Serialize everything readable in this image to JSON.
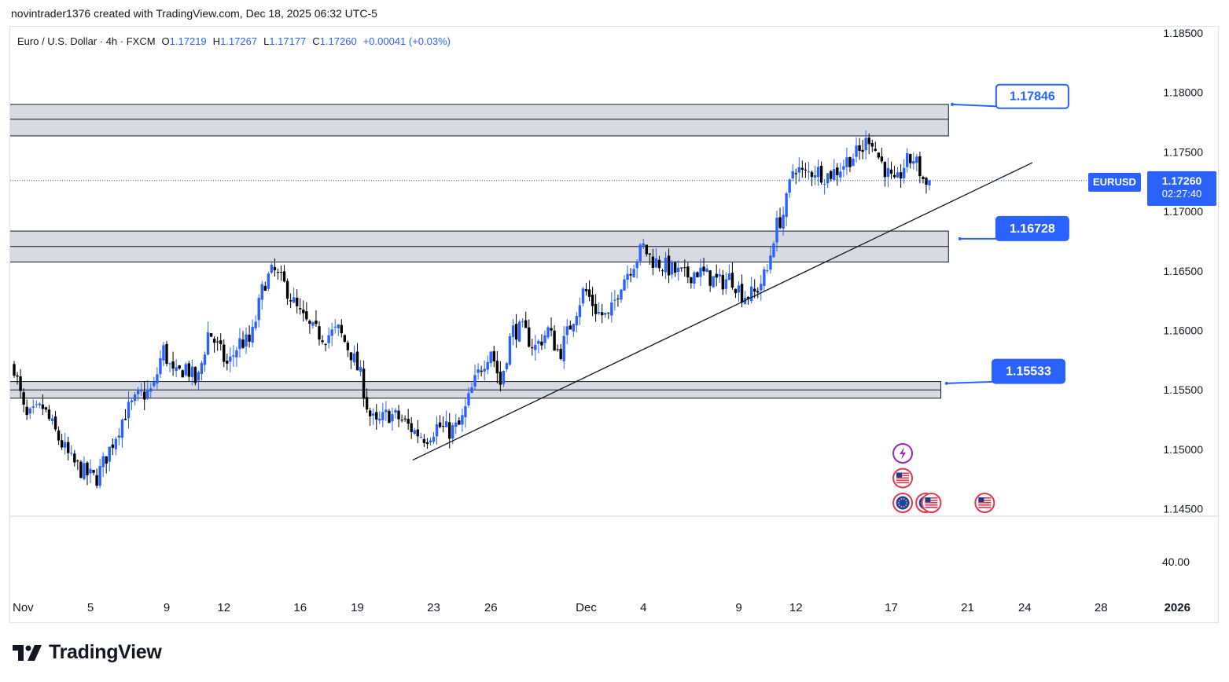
{
  "caption": "novintrader1376 created with TradingView.com, Dec 18, 2025 06:32 UTC-5",
  "legend": {
    "title": "Euro / U.S. Dollar · 4h · FXCM",
    "o_label": "O",
    "o": "1.17219",
    "h_label": "H",
    "h": "1.17267",
    "l_label": "L",
    "l": "1.17177",
    "c_label": "C",
    "c": "1.17260",
    "change": "+0.00041 (+0.03%)"
  },
  "symbol": "EURUSD",
  "current_price": "1.17260",
  "countdown": "02:27:40",
  "brand": "TradingView",
  "colors": {
    "up": "#2962ff",
    "down": "#000000",
    "accent": "#2962ff",
    "zone": "#d1d4dc",
    "event_red": "#e5354b",
    "event_purple": "#9c27b0"
  },
  "chart_data": {
    "type": "candlestick",
    "symbol": "EURUSD",
    "timeframe": "4h",
    "y_axis": {
      "min": 1.145,
      "max": 1.185,
      "step": 0.005,
      "ticks": [
        "1.18500",
        "1.18000",
        "1.17500",
        "1.17000",
        "1.16500",
        "1.16000",
        "1.15500",
        "1.15000",
        "1.14500"
      ]
    },
    "indicator_tick": "40.00",
    "x_axis": {
      "ticks": [
        {
          "label": "Nov",
          "day": 0,
          "bold": false
        },
        {
          "label": "5",
          "day": 4,
          "bold": false
        },
        {
          "label": "9",
          "day": 8,
          "bold": false
        },
        {
          "label": "12",
          "day": 11,
          "bold": false
        },
        {
          "label": "16",
          "day": 15,
          "bold": false
        },
        {
          "label": "19",
          "day": 18,
          "bold": false
        },
        {
          "label": "23",
          "day": 22,
          "bold": false
        },
        {
          "label": "26",
          "day": 25,
          "bold": false
        },
        {
          "label": "Dec",
          "day": 30,
          "bold": false
        },
        {
          "label": "4",
          "day": 33,
          "bold": false
        },
        {
          "label": "9",
          "day": 38,
          "bold": false
        },
        {
          "label": "12",
          "day": 41,
          "bold": false
        },
        {
          "label": "17",
          "day": 46,
          "bold": false
        },
        {
          "label": "21",
          "day": 50,
          "bold": false
        },
        {
          "label": "24",
          "day": 53,
          "bold": false
        },
        {
          "label": "28",
          "day": 57,
          "bold": false
        },
        {
          "label": "2026",
          "day": 61,
          "bold": true
        }
      ]
    },
    "path": [
      {
        "day": 0.0,
        "price": 1.157
      },
      {
        "day": 0.6,
        "price": 1.1525
      },
      {
        "day": 1.5,
        "price": 1.1535
      },
      {
        "day": 2.3,
        "price": 1.151
      },
      {
        "day": 3.0,
        "price": 1.149
      },
      {
        "day": 3.7,
        "price": 1.148
      },
      {
        "day": 4.3,
        "price": 1.1475
      },
      {
        "day": 5.0,
        "price": 1.15
      },
      {
        "day": 5.8,
        "price": 1.153
      },
      {
        "day": 6.6,
        "price": 1.1545
      },
      {
        "day": 7.3,
        "price": 1.155
      },
      {
        "day": 7.8,
        "price": 1.1585
      },
      {
        "day": 8.4,
        "price": 1.156
      },
      {
        "day": 9.0,
        "price": 1.157
      },
      {
        "day": 9.6,
        "price": 1.1555
      },
      {
        "day": 10.2,
        "price": 1.16
      },
      {
        "day": 10.7,
        "price": 1.1585
      },
      {
        "day": 11.2,
        "price": 1.157
      },
      {
        "day": 11.8,
        "price": 1.159
      },
      {
        "day": 12.4,
        "price": 1.159
      },
      {
        "day": 13.1,
        "price": 1.164
      },
      {
        "day": 13.6,
        "price": 1.165
      },
      {
        "day": 14.3,
        "price": 1.1635
      },
      {
        "day": 14.9,
        "price": 1.1615
      },
      {
        "day": 15.6,
        "price": 1.16
      },
      {
        "day": 16.3,
        "price": 1.1595
      },
      {
        "day": 17.0,
        "price": 1.16
      },
      {
        "day": 17.7,
        "price": 1.158
      },
      {
        "day": 18.2,
        "price": 1.156
      },
      {
        "day": 18.6,
        "price": 1.153
      },
      {
        "day": 19.0,
        "price": 1.152
      },
      {
        "day": 19.6,
        "price": 1.153
      },
      {
        "day": 20.3,
        "price": 1.1525
      },
      {
        "day": 21.0,
        "price": 1.1515
      },
      {
        "day": 21.6,
        "price": 1.151
      },
      {
        "day": 22.2,
        "price": 1.152
      },
      {
        "day": 22.8,
        "price": 1.1515
      },
      {
        "day": 23.4,
        "price": 1.152
      },
      {
        "day": 24.0,
        "price": 1.155
      },
      {
        "day": 24.5,
        "price": 1.157
      },
      {
        "day": 25.0,
        "price": 1.1585
      },
      {
        "day": 25.5,
        "price": 1.1555
      },
      {
        "day": 26.1,
        "price": 1.16
      },
      {
        "day": 26.7,
        "price": 1.16
      },
      {
        "day": 27.3,
        "price": 1.1585
      },
      {
        "day": 28.0,
        "price": 1.16
      },
      {
        "day": 28.6,
        "price": 1.158
      },
      {
        "day": 29.3,
        "price": 1.161
      },
      {
        "day": 29.9,
        "price": 1.1635
      },
      {
        "day": 30.6,
        "price": 1.1615
      },
      {
        "day": 31.2,
        "price": 1.161
      },
      {
        "day": 31.8,
        "price": 1.164
      },
      {
        "day": 32.4,
        "price": 1.1655
      },
      {
        "day": 33.0,
        "price": 1.167
      },
      {
        "day": 33.4,
        "price": 1.166
      },
      {
        "day": 34.0,
        "price": 1.1655
      },
      {
        "day": 34.6,
        "price": 1.165
      },
      {
        "day": 35.2,
        "price": 1.1645
      },
      {
        "day": 35.8,
        "price": 1.165
      },
      {
        "day": 36.4,
        "price": 1.1645
      },
      {
        "day": 37.0,
        "price": 1.164
      },
      {
        "day": 37.6,
        "price": 1.1645
      },
      {
        "day": 38.2,
        "price": 1.163
      },
      {
        "day": 38.8,
        "price": 1.163
      },
      {
        "day": 39.5,
        "price": 1.165
      },
      {
        "day": 39.9,
        "price": 1.1685
      },
      {
        "day": 40.4,
        "price": 1.17
      },
      {
        "day": 40.9,
        "price": 1.174
      },
      {
        "day": 41.4,
        "price": 1.173
      },
      {
        "day": 42.0,
        "price": 1.1735
      },
      {
        "day": 42.6,
        "price": 1.173
      },
      {
        "day": 43.2,
        "price": 1.1735
      },
      {
        "day": 43.8,
        "price": 1.1745
      },
      {
        "day": 44.4,
        "price": 1.175
      },
      {
        "day": 44.9,
        "price": 1.1765
      },
      {
        "day": 45.2,
        "price": 1.175
      },
      {
        "day": 45.7,
        "price": 1.1735
      },
      {
        "day": 46.2,
        "price": 1.172
      },
      {
        "day": 46.7,
        "price": 1.174
      },
      {
        "day": 47.2,
        "price": 1.1745
      },
      {
        "day": 47.8,
        "price": 1.1722
      },
      {
        "day": 48.1,
        "price": 1.1726
      }
    ],
    "zones": [
      {
        "name": "zone-top",
        "from_day": -0.4,
        "to_day": 49.0,
        "top": 1.179,
        "bottom": 1.17635,
        "mid": 1.17775
      },
      {
        "name": "zone-mid",
        "from_day": -0.4,
        "to_day": 49.0,
        "top": 1.16835,
        "bottom": 1.16575,
        "mid": 1.16705
      },
      {
        "name": "zone-low",
        "from_day": -0.4,
        "to_day": 48.6,
        "top": 1.1557,
        "bottom": 1.1543,
        "mid": 1.155
      }
    ],
    "trendline": {
      "from_day": 20.9,
      "from_price": 1.1491,
      "to_day": 53.4,
      "to_price": 1.1741
    },
    "callouts": [
      {
        "label": "1.17846",
        "value": 1.17846,
        "anchor_day": 49.2,
        "anchor_price": 1.179,
        "box_day": 51.5,
        "box_price": 1.18066,
        "style": "outline"
      },
      {
        "label": "1.16728",
        "value": 1.16728,
        "anchor_day": 49.6,
        "anchor_price": 1.1677,
        "box_day": 51.5,
        "box_price": 1.16955,
        "style": "filled"
      },
      {
        "label": "1.15533",
        "value": 1.15533,
        "anchor_day": 48.9,
        "anchor_price": 1.15555,
        "box_day": 51.3,
        "box_price": 1.15755,
        "style": "filled"
      }
    ],
    "events": [
      {
        "type": "flash",
        "day": 46.6,
        "row": 0
      },
      {
        "type": "us",
        "day": 46.6,
        "row": 1
      },
      {
        "type": "eu",
        "day": 46.6,
        "row": 2
      },
      {
        "type": "eu",
        "day": 47.8,
        "row": 2
      },
      {
        "type": "us",
        "day": 48.1,
        "row": 2
      },
      {
        "type": "us",
        "day": 50.9,
        "row": 2
      }
    ]
  }
}
